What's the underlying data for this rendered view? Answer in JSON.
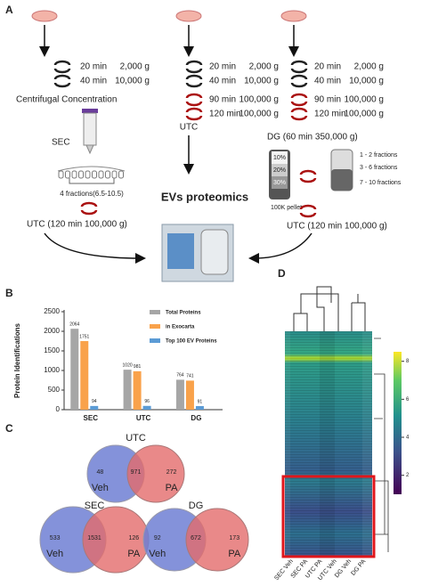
{
  "panel_labels": [
    "A",
    "B",
    "C",
    "D"
  ],
  "panel_a": {
    "col1_steps": [
      [
        "20 min",
        "2,000 g"
      ],
      [
        "40 min",
        "10,000 g"
      ]
    ],
    "col2_steps": [
      [
        "20 min",
        "2,000 g"
      ],
      [
        "40 min",
        "10,000 g"
      ],
      [
        "90 min",
        "100,000 g"
      ],
      [
        "120 min",
        "100,000 g"
      ]
    ],
    "col3_steps": [
      [
        "20 min",
        "2,000 g"
      ],
      [
        "40 min",
        "10,000 g"
      ],
      [
        "90 min",
        "100,000 g"
      ],
      [
        "120 min",
        "100,000 g"
      ]
    ],
    "concentration": "Centrifugal Concentration",
    "sec": "SEC",
    "fractions": "4 fractions(6.5-10.5)",
    "sec_utc": "UTC (120 min 100,000 g)",
    "utc": "UTC",
    "center": "EVs proteomics",
    "dg": "DG (60 min 350,000 g)",
    "gradient": [
      "10%",
      "20%",
      "30%"
    ],
    "pellet": "100K pellet",
    "dg_fractions": [
      "1 - 2 fractions",
      "3 - 6 fractions",
      "7 - 10 fractions"
    ],
    "dg_utc": "UTC (120 min 100,000 g)"
  },
  "chart_data": {
    "type": "bar",
    "y_label": "Protein Identifications",
    "categories": [
      "SEC",
      "UTC",
      "DG"
    ],
    "series": [
      {
        "name": "Total Proteins",
        "color": "#a6a6a6",
        "values": [
          2064,
          1020,
          764
        ]
      },
      {
        "name": "in Exocarta",
        "color": "#f9a24b",
        "values": [
          1751,
          981,
          741
        ]
      },
      {
        "name": "Top 100 EV Proteins",
        "color": "#5b9bd5",
        "values": [
          94,
          96,
          91
        ]
      }
    ],
    "ylim": [
      0,
      2500
    ],
    "yticks": [
      0,
      500,
      1000,
      1500,
      2000,
      2500
    ]
  },
  "venns": [
    {
      "title": "UTC",
      "left_only": 48,
      "overlap": 971,
      "right_only": 272,
      "left": "Veh",
      "right": "PA"
    },
    {
      "title": "SEC",
      "left_only": 533,
      "overlap": 1531,
      "right_only": 126,
      "left": "Veh",
      "right": "PA"
    },
    {
      "title": "DG",
      "left_only": 92,
      "overlap": 672,
      "right_only": 173,
      "left": "Veh",
      "right": "PA"
    }
  ],
  "heatmap": {
    "columns": [
      "SEC Veh",
      "SEC PA",
      "UTC PA",
      "UTC Veh",
      "DG Veh",
      "DG PA"
    ],
    "colorbar_lim": [
      1,
      8.5
    ],
    "colorbar_ticks": [
      2,
      4,
      6,
      8
    ]
  }
}
